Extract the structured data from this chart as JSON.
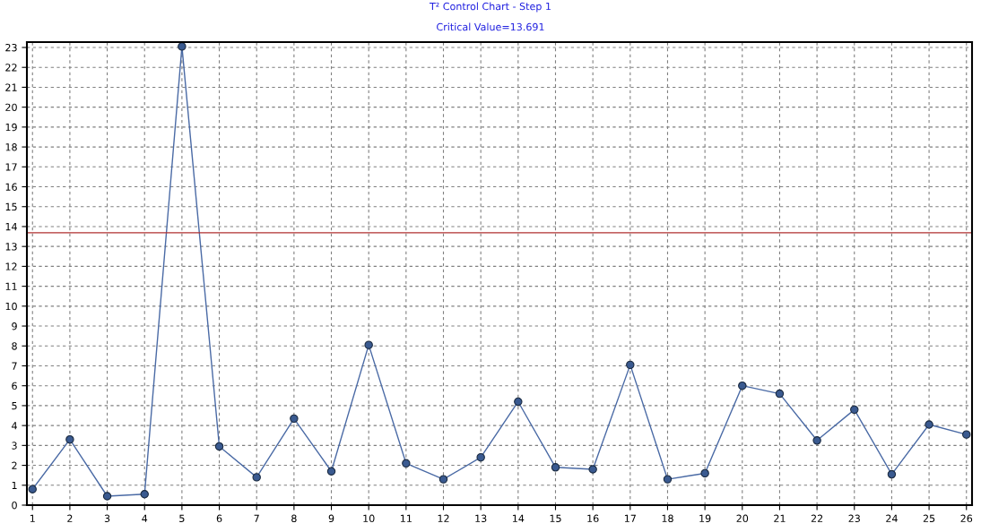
{
  "chart_data": {
    "type": "line",
    "title": "T² Control Chart - Step 1",
    "subtitle": "Critical Value=13.691",
    "x": [
      1,
      2,
      3,
      4,
      5,
      6,
      7,
      8,
      9,
      10,
      11,
      12,
      13,
      14,
      15,
      16,
      17,
      18,
      19,
      20,
      21,
      22,
      23,
      24,
      25,
      26
    ],
    "series": [
      {
        "color": "#4a6aa5",
        "values": [
          0.8,
          3.3,
          0.45,
          0.55,
          23.05,
          2.95,
          1.4,
          4.35,
          1.7,
          8.05,
          2.1,
          1.3,
          2.4,
          5.2,
          1.9,
          1.8,
          7.05,
          1.3,
          1.6,
          6.0,
          5.6,
          3.25,
          4.8,
          1.55,
          4.05,
          3.55
        ]
      }
    ],
    "xlim": [
      0.85,
      26.15
    ],
    "xticks": [
      1,
      2,
      3,
      4,
      5,
      6,
      7,
      8,
      9,
      10,
      11,
      12,
      13,
      14,
      15,
      16,
      17,
      18,
      19,
      20,
      21,
      22,
      23,
      24,
      25,
      26
    ],
    "ylim": [
      0,
      23.27
    ],
    "yticks": [
      0,
      1,
      2,
      3,
      4,
      5,
      6,
      7,
      8,
      9,
      10,
      11,
      12,
      13,
      14,
      15,
      16,
      17,
      18,
      19,
      20,
      21,
      22,
      23
    ],
    "ref_lines": [
      {
        "axis": "y",
        "value": 13.691,
        "color": "#b03030"
      }
    ],
    "grid": true,
    "marker": "circle",
    "line_style": "solid",
    "legend": false
  }
}
